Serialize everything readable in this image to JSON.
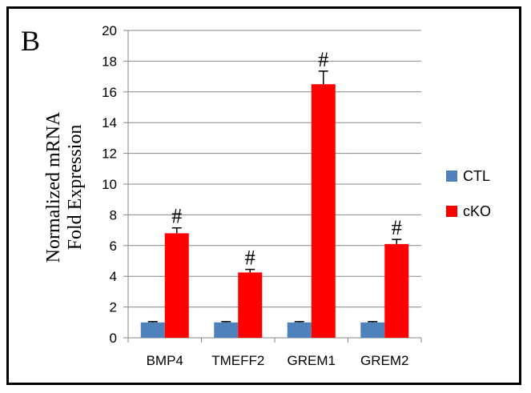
{
  "panel_label": "B",
  "chart_data": {
    "type": "bar",
    "categories": [
      "BMP4",
      "TMEFF2",
      "GREM1",
      "GREM2"
    ],
    "series": [
      {
        "name": "CTL",
        "color": "#4F81BD",
        "values": [
          1,
          1,
          1,
          1
        ],
        "errors": [
          0.05,
          0.05,
          0.05,
          0.05
        ]
      },
      {
        "name": "cKO",
        "color": "#FF0000",
        "values": [
          6.8,
          4.25,
          16.5,
          6.1
        ],
        "errors": [
          0.35,
          0.2,
          0.85,
          0.3
        ]
      }
    ],
    "annotations": [
      "#",
      "#",
      "#",
      "#"
    ],
    "ylabel_lines": [
      "Normalized mRNA",
      "Fold Expression"
    ],
    "ylim": [
      0,
      20
    ],
    "yticks": [
      "0",
      "2",
      "4",
      "6",
      "8",
      "10",
      "12",
      "14",
      "16",
      "18",
      "20"
    ],
    "grid": true,
    "legend_position": "right",
    "title": ""
  }
}
